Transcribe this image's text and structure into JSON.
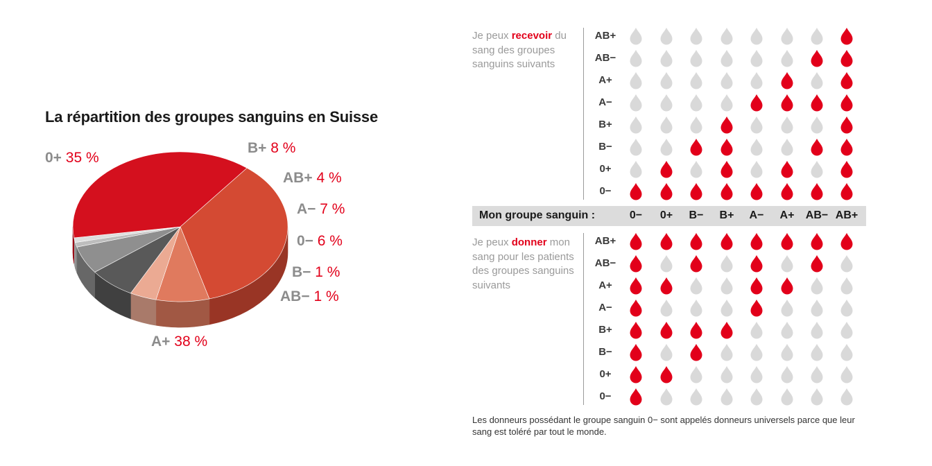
{
  "colors": {
    "red": "#e2001a",
    "drop_inactive": "#d9d9d9",
    "label_grey": "#8c8c8c",
    "bar_grey": "#dcdcdc"
  },
  "chart_data": [
    {
      "type": "pie",
      "title": "La répartition des groupes sanguins en Suisse",
      "slices": [
        {
          "group": "0+",
          "value": 35,
          "pct_label": "35 %",
          "color": "#d44a33"
        },
        {
          "group": "B+",
          "value": 8,
          "pct_label": "8 %",
          "color": "#e07a5e"
        },
        {
          "group": "AB+",
          "value": 4,
          "pct_label": "4 %",
          "color": "#ebaa93"
        },
        {
          "group": "A−",
          "value": 7,
          "pct_label": "7 %",
          "color": "#595959"
        },
        {
          "group": "0−",
          "value": 6,
          "pct_label": "6 %",
          "color": "#8f8f8f"
        },
        {
          "group": "B−",
          "value": 1,
          "pct_label": "1 %",
          "color": "#bdbdbd"
        },
        {
          "group": "AB−",
          "value": 1,
          "pct_label": "1 %",
          "color": "#dedede"
        },
        {
          "group": "A+",
          "value": 38,
          "pct_label": "38 %",
          "color": "#d4101e"
        }
      ]
    },
    {
      "type": "table",
      "columns": [
        "0−",
        "0+",
        "B−",
        "B+",
        "A−",
        "A+",
        "AB−",
        "AB+"
      ],
      "receive": {
        "rows": [
          "AB+",
          "AB−",
          "A+",
          "A−",
          "B+",
          "B−",
          "0+",
          "0−"
        ],
        "matrix": [
          [
            0,
            0,
            0,
            0,
            0,
            0,
            0,
            1
          ],
          [
            0,
            0,
            0,
            0,
            0,
            0,
            1,
            1
          ],
          [
            0,
            0,
            0,
            0,
            0,
            1,
            0,
            1
          ],
          [
            0,
            0,
            0,
            0,
            1,
            1,
            1,
            1
          ],
          [
            0,
            0,
            0,
            1,
            0,
            0,
            0,
            1
          ],
          [
            0,
            0,
            1,
            1,
            0,
            0,
            1,
            1
          ],
          [
            0,
            1,
            0,
            1,
            0,
            1,
            0,
            1
          ],
          [
            1,
            1,
            1,
            1,
            1,
            1,
            1,
            1
          ]
        ]
      },
      "give": {
        "rows": [
          "AB+",
          "AB−",
          "A+",
          "A−",
          "B+",
          "B−",
          "0+",
          "0−"
        ],
        "matrix": [
          [
            1,
            1,
            1,
            1,
            1,
            1,
            1,
            1
          ],
          [
            1,
            0,
            1,
            0,
            1,
            0,
            1,
            0
          ],
          [
            1,
            1,
            0,
            0,
            1,
            1,
            0,
            0
          ],
          [
            1,
            0,
            0,
            0,
            1,
            0,
            0,
            0
          ],
          [
            1,
            1,
            1,
            1,
            0,
            0,
            0,
            0
          ],
          [
            1,
            0,
            1,
            0,
            0,
            0,
            0,
            0
          ],
          [
            1,
            1,
            0,
            0,
            0,
            0,
            0,
            0
          ],
          [
            1,
            0,
            0,
            0,
            0,
            0,
            0,
            0
          ]
        ]
      }
    }
  ],
  "receive_text": {
    "pre": "Je peux ",
    "keyword": "recevoir",
    "post": " du sang des groupes sanguins suivants"
  },
  "give_text": {
    "pre": "Je peux ",
    "keyword": "donner",
    "post": " mon sang pour les patients des groupes sanguins suivants"
  },
  "group_bar_label": "Mon groupe sanguin :",
  "footnote": "Les donneurs possédant le groupe sanguin 0− sont appelés donneurs universels parce que leur sang est toléré par tout le monde."
}
